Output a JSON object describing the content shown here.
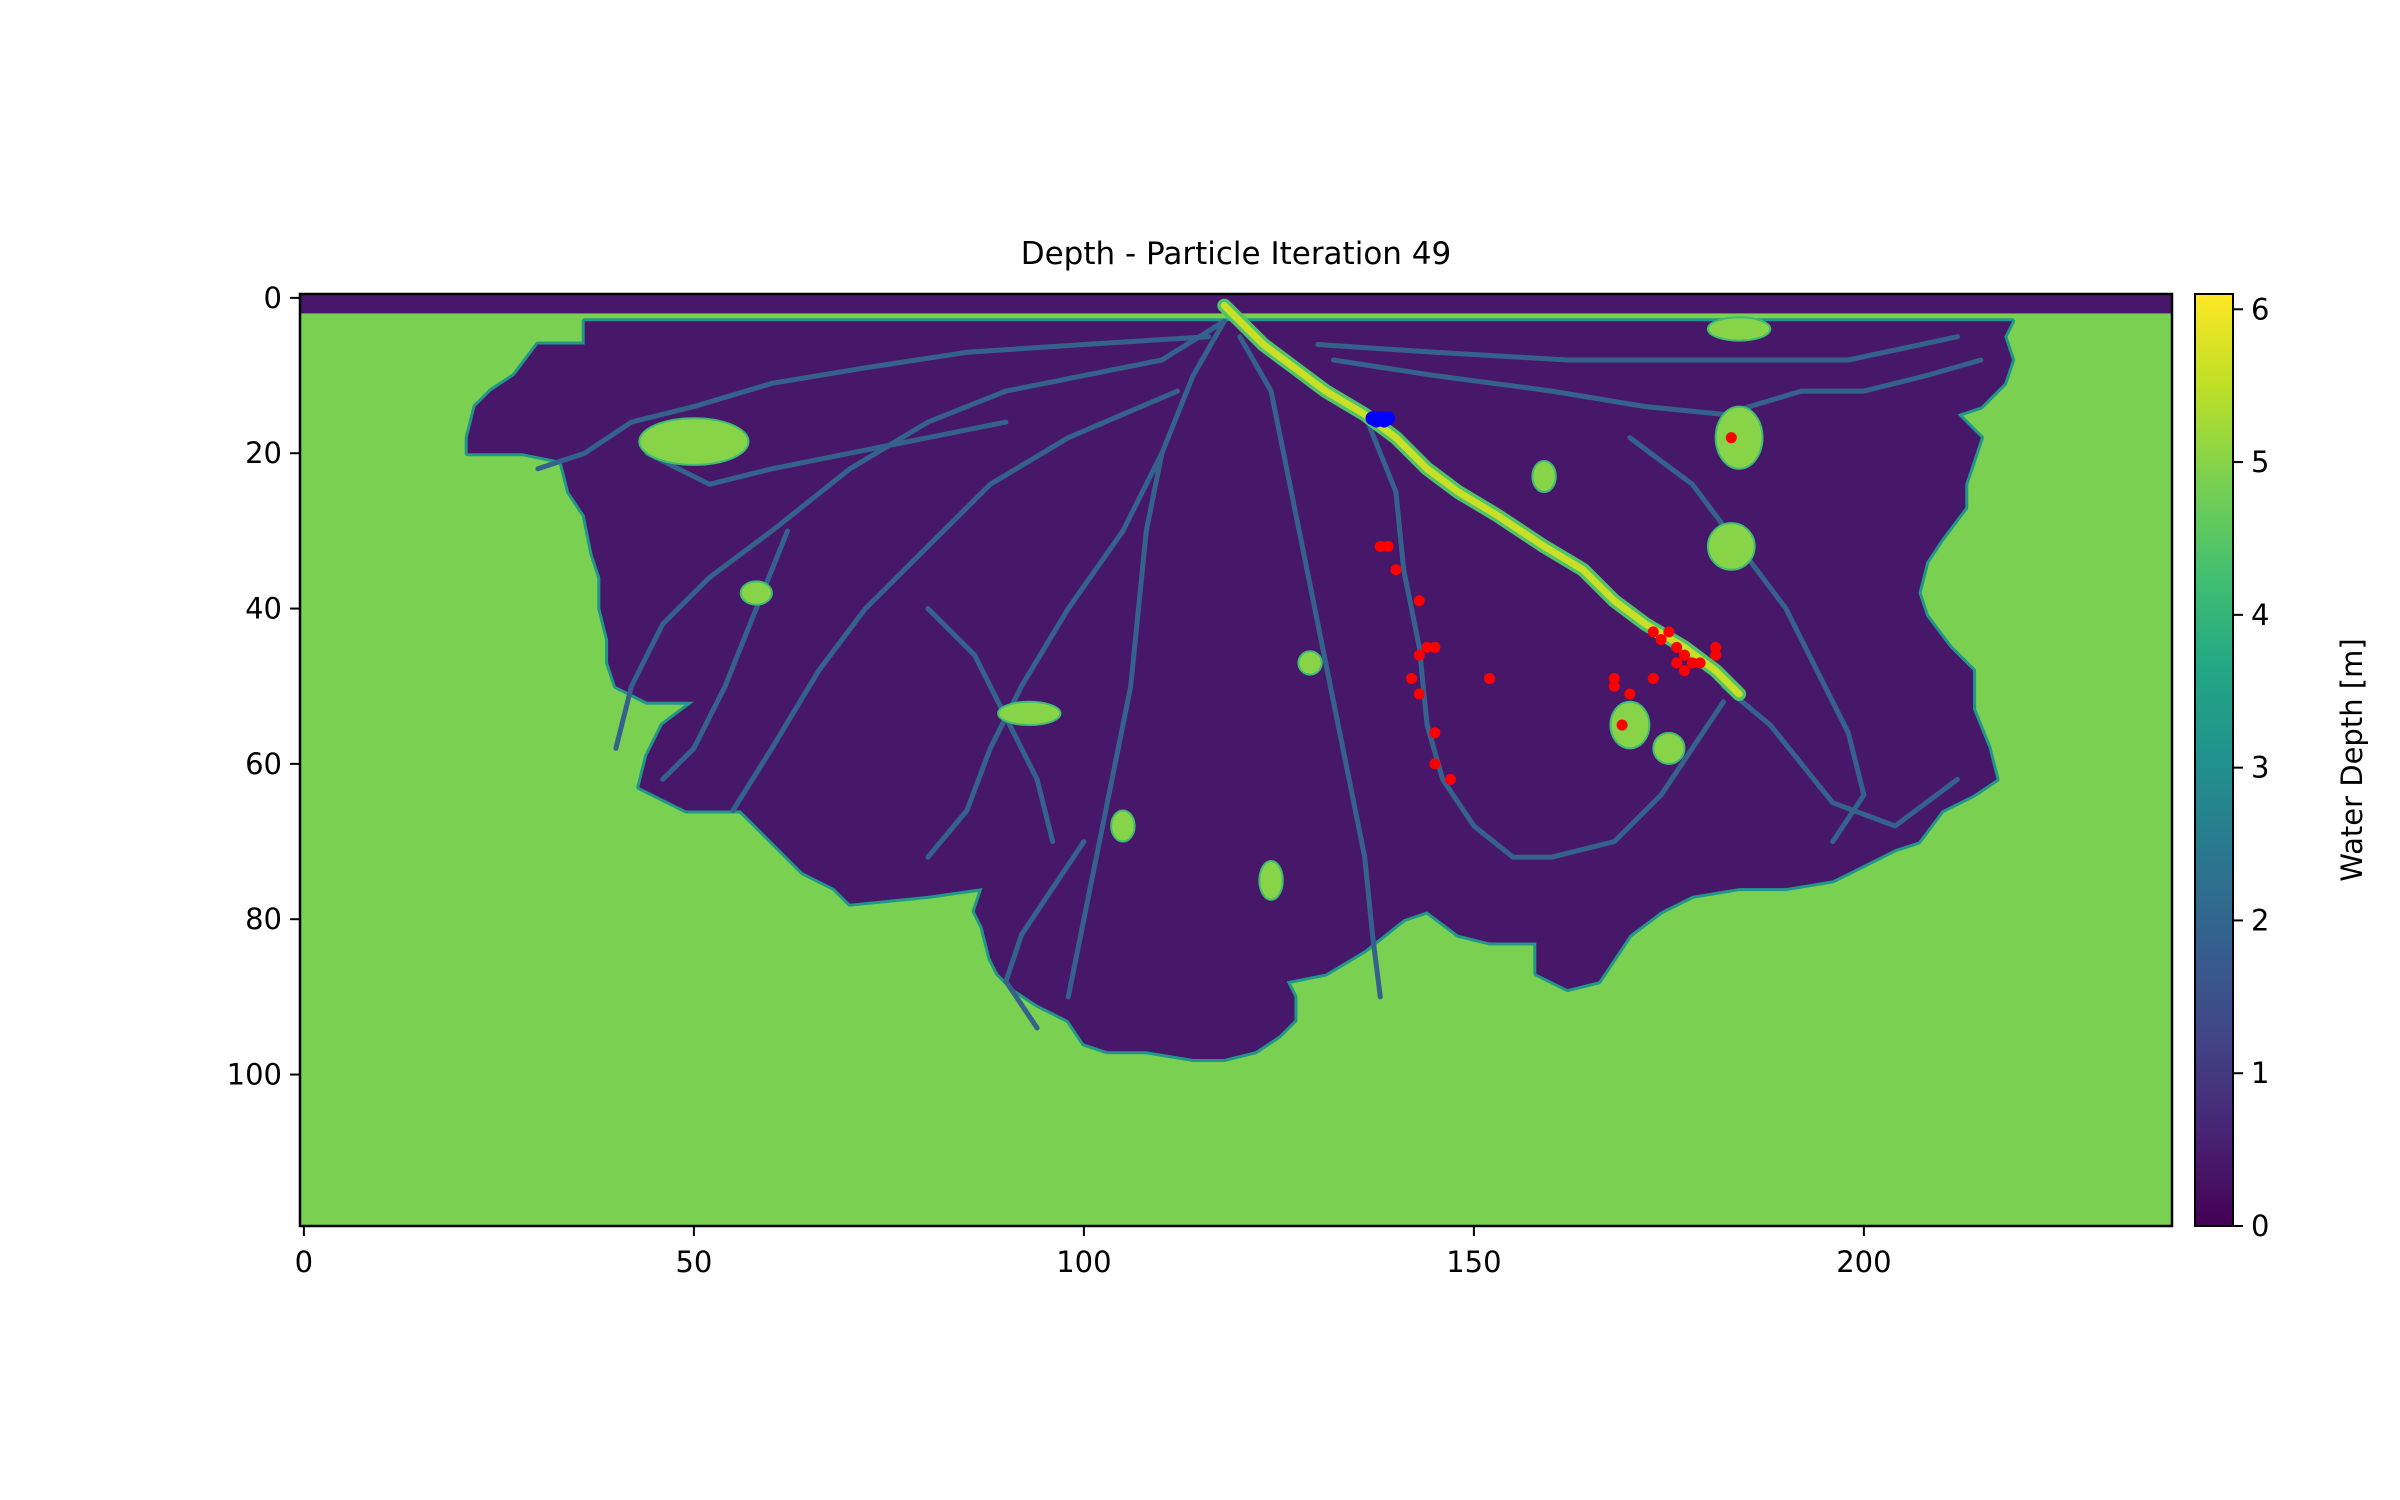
{
  "chart_data": {
    "type": "heatmap",
    "title": "Depth - Particle Iteration 49",
    "xlabel": "",
    "ylabel": "",
    "xlim": [
      -0.5,
      239.5
    ],
    "ylim": [
      119.5,
      -0.5
    ],
    "y_inverted": true,
    "x_ticks": [
      0,
      50,
      100,
      150,
      200
    ],
    "y_ticks": [
      0,
      20,
      40,
      60,
      80,
      100
    ],
    "colormap": "viridis",
    "colorbar": {
      "label": "Water Depth [m]",
      "range": [
        0,
        6.1
      ],
      "ticks": [
        0,
        1,
        2,
        3,
        4,
        5,
        6
      ]
    },
    "grid": false,
    "fill_value_m": 5.0,
    "channel_depth_m": 0.4,
    "land_boundary": [
      [
        36,
        3
      ],
      [
        36,
        6
      ],
      [
        30,
        6
      ],
      [
        27,
        10
      ],
      [
        24,
        12
      ],
      [
        22,
        14
      ],
      [
        21,
        18
      ],
      [
        21,
        20
      ],
      [
        28,
        20
      ],
      [
        33,
        21
      ],
      [
        34,
        25
      ],
      [
        36,
        28
      ],
      [
        37,
        33
      ],
      [
        38,
        36
      ],
      [
        38,
        40
      ],
      [
        39,
        44
      ],
      [
        39,
        47
      ],
      [
        40,
        50
      ],
      [
        44,
        52
      ],
      [
        50,
        52
      ],
      [
        46,
        55
      ],
      [
        44,
        59
      ],
      [
        43,
        63
      ],
      [
        49,
        66
      ],
      [
        56,
        66
      ],
      [
        58,
        68
      ],
      [
        60,
        70
      ],
      [
        62,
        72
      ],
      [
        64,
        74
      ],
      [
        68,
        76
      ],
      [
        70,
        78
      ],
      [
        80,
        77
      ],
      [
        87,
        76
      ],
      [
        86,
        79
      ],
      [
        87,
        81
      ],
      [
        88,
        85
      ],
      [
        89,
        87
      ],
      [
        91,
        89
      ],
      [
        94,
        91
      ],
      [
        98,
        93
      ],
      [
        100,
        96
      ],
      [
        103,
        97
      ],
      [
        108,
        97
      ],
      [
        114,
        98
      ],
      [
        118,
        98
      ],
      [
        122,
        97
      ],
      [
        125,
        95
      ],
      [
        127,
        93
      ],
      [
        127,
        90
      ],
      [
        126,
        88
      ],
      [
        131,
        87
      ],
      [
        136,
        84
      ],
      [
        141,
        80
      ],
      [
        144,
        79
      ],
      [
        148,
        82
      ],
      [
        152,
        83
      ],
      [
        158,
        83
      ],
      [
        158,
        87
      ],
      [
        162,
        89
      ],
      [
        166,
        88
      ],
      [
        168,
        85
      ],
      [
        170,
        82
      ],
      [
        174,
        79
      ],
      [
        178,
        77
      ],
      [
        184,
        76
      ],
      [
        190,
        76
      ],
      [
        196,
        75
      ],
      [
        200,
        73
      ],
      [
        204,
        71
      ],
      [
        207,
        70
      ],
      [
        210,
        66
      ],
      [
        214,
        64
      ],
      [
        217,
        62
      ],
      [
        216,
        58
      ],
      [
        214,
        53
      ],
      [
        214,
        48
      ],
      [
        211,
        45
      ],
      [
        208,
        41
      ],
      [
        207,
        38
      ],
      [
        208,
        34
      ],
      [
        210,
        31
      ],
      [
        213,
        27
      ],
      [
        213,
        24
      ],
      [
        214,
        21
      ],
      [
        215,
        18
      ],
      [
        212,
        15
      ],
      [
        215,
        14
      ],
      [
        218,
        11
      ],
      [
        219,
        8
      ],
      [
        218,
        5
      ],
      [
        219,
        3
      ]
    ],
    "deep_channel": [
      [
        118,
        1
      ],
      [
        121,
        4
      ],
      [
        123,
        6
      ],
      [
        127,
        9
      ],
      [
        131,
        12
      ],
      [
        136,
        15
      ],
      [
        140,
        18
      ],
      [
        144,
        22
      ],
      [
        148,
        25
      ],
      [
        153,
        28
      ],
      [
        159,
        32
      ],
      [
        164,
        35
      ],
      [
        168,
        39
      ],
      [
        172,
        42
      ],
      [
        177,
        45
      ],
      [
        181,
        48
      ],
      [
        184,
        51
      ]
    ],
    "channels": [
      [
        [
          118,
          3
        ],
        [
          114,
          10
        ],
        [
          110,
          20
        ],
        [
          108,
          30
        ],
        [
          107,
          40
        ],
        [
          106,
          50
        ],
        [
          104,
          60
        ],
        [
          102,
          70
        ],
        [
          100,
          80
        ],
        [
          98,
          90
        ]
      ],
      [
        [
          118,
          3
        ],
        [
          110,
          8
        ],
        [
          100,
          10
        ],
        [
          90,
          12
        ],
        [
          80,
          16
        ],
        [
          70,
          22
        ],
        [
          60,
          30
        ],
        [
          52,
          36
        ],
        [
          46,
          42
        ],
        [
          42,
          50
        ],
        [
          40,
          58
        ]
      ],
      [
        [
          116,
          5
        ],
        [
          100,
          6
        ],
        [
          85,
          7
        ],
        [
          72,
          9
        ],
        [
          60,
          11
        ],
        [
          50,
          14
        ],
        [
          42,
          16
        ],
        [
          36,
          20
        ],
        [
          30,
          22
        ]
      ],
      [
        [
          112,
          12
        ],
        [
          98,
          18
        ],
        [
          88,
          24
        ],
        [
          80,
          32
        ],
        [
          72,
          40
        ],
        [
          66,
          48
        ],
        [
          60,
          58
        ],
        [
          55,
          66
        ]
      ],
      [
        [
          110,
          20
        ],
        [
          105,
          30
        ],
        [
          98,
          40
        ],
        [
          92,
          50
        ],
        [
          88,
          58
        ],
        [
          85,
          66
        ],
        [
          80,
          72
        ]
      ],
      [
        [
          120,
          5
        ],
        [
          124,
          12
        ],
        [
          126,
          22
        ],
        [
          128,
          32
        ],
        [
          130,
          42
        ],
        [
          132,
          52
        ],
        [
          134,
          62
        ],
        [
          136,
          72
        ],
        [
          137,
          82
        ],
        [
          138,
          90
        ]
      ],
      [
        [
          136,
          15
        ],
        [
          140,
          25
        ],
        [
          141,
          35
        ],
        [
          143,
          45
        ],
        [
          144,
          55
        ],
        [
          146,
          62
        ],
        [
          150,
          68
        ],
        [
          155,
          72
        ],
        [
          160,
          72
        ],
        [
          168,
          70
        ],
        [
          174,
          64
        ],
        [
          178,
          58
        ],
        [
          182,
          52
        ]
      ],
      [
        [
          132,
          8
        ],
        [
          145,
          10
        ],
        [
          160,
          12
        ],
        [
          172,
          14
        ],
        [
          182,
          15
        ],
        [
          192,
          12
        ],
        [
          200,
          12
        ],
        [
          208,
          10
        ],
        [
          215,
          8
        ]
      ],
      [
        [
          130,
          6
        ],
        [
          145,
          7
        ],
        [
          162,
          8
        ],
        [
          180,
          8
        ],
        [
          198,
          8
        ],
        [
          212,
          5
        ]
      ],
      [
        [
          170,
          18
        ],
        [
          178,
          24
        ],
        [
          184,
          32
        ],
        [
          190,
          40
        ],
        [
          194,
          48
        ],
        [
          198,
          56
        ],
        [
          200,
          64
        ],
        [
          196,
          70
        ]
      ],
      [
        [
          182,
          50
        ],
        [
          188,
          55
        ],
        [
          192,
          60
        ],
        [
          196,
          65
        ],
        [
          204,
          68
        ],
        [
          212,
          62
        ]
      ],
      [
        [
          100,
          70
        ],
        [
          96,
          76
        ],
        [
          92,
          82
        ],
        [
          90,
          88
        ],
        [
          94,
          94
        ]
      ],
      [
        [
          62,
          30
        ],
        [
          58,
          40
        ],
        [
          54,
          50
        ],
        [
          50,
          58
        ],
        [
          46,
          62
        ]
      ],
      [
        [
          44,
          20
        ],
        [
          52,
          24
        ],
        [
          60,
          22
        ],
        [
          70,
          20
        ],
        [
          80,
          18
        ],
        [
          90,
          16
        ]
      ],
      [
        [
          80,
          40
        ],
        [
          86,
          46
        ],
        [
          90,
          54
        ],
        [
          94,
          62
        ],
        [
          96,
          70
        ]
      ]
    ],
    "inner_land_patches": [
      {
        "center": [
          50,
          18.5
        ],
        "rx": 7,
        "ry": 3
      },
      {
        "center": [
          93,
          53.5
        ],
        "rx": 4,
        "ry": 1.5
      },
      {
        "center": [
          58,
          38
        ],
        "rx": 2,
        "ry": 1.5
      },
      {
        "center": [
          184,
          18
        ],
        "rx": 3,
        "ry": 4
      },
      {
        "center": [
          183,
          32
        ],
        "rx": 3,
        "ry": 3
      },
      {
        "center": [
          184,
          4
        ],
        "rx": 4,
        "ry": 1.5
      },
      {
        "center": [
          170,
          55
        ],
        "rx": 2.5,
        "ry": 3
      },
      {
        "center": [
          175,
          58
        ],
        "rx": 2,
        "ry": 2
      },
      {
        "center": [
          129,
          47
        ],
        "rx": 1.5,
        "ry": 1.5
      },
      {
        "center": [
          105,
          68
        ],
        "rx": 1.5,
        "ry": 2
      },
      {
        "center": [
          124,
          75
        ],
        "rx": 1.5,
        "ry": 2.5
      },
      {
        "center": [
          159,
          23
        ],
        "rx": 1.5,
        "ry": 2
      }
    ],
    "series": [
      {
        "name": "",
        "type": "scatter",
        "color": "#ff0000",
        "x": [
          183,
          138,
          139,
          140,
          143,
          144,
          145,
          143,
          142,
          143,
          152,
          145,
          145,
          147,
          168,
          168,
          170,
          169,
          173,
          173,
          174,
          175,
          176,
          177,
          178,
          176,
          179,
          181,
          181,
          177
        ],
        "y": [
          18,
          32,
          32,
          35,
          39,
          45,
          45,
          46,
          49,
          51,
          49,
          56,
          60,
          62,
          49,
          50,
          51,
          55,
          43,
          49,
          44,
          43,
          45,
          46,
          47,
          47,
          47,
          45,
          46,
          48
        ]
      },
      {
        "name": "",
        "type": "scatter",
        "color": "#0000ff",
        "x": [
          137,
          137.5,
          138,
          138.5,
          139
        ],
        "y": [
          15.5,
          15.8,
          15.5,
          15.8,
          15.5
        ]
      }
    ]
  }
}
